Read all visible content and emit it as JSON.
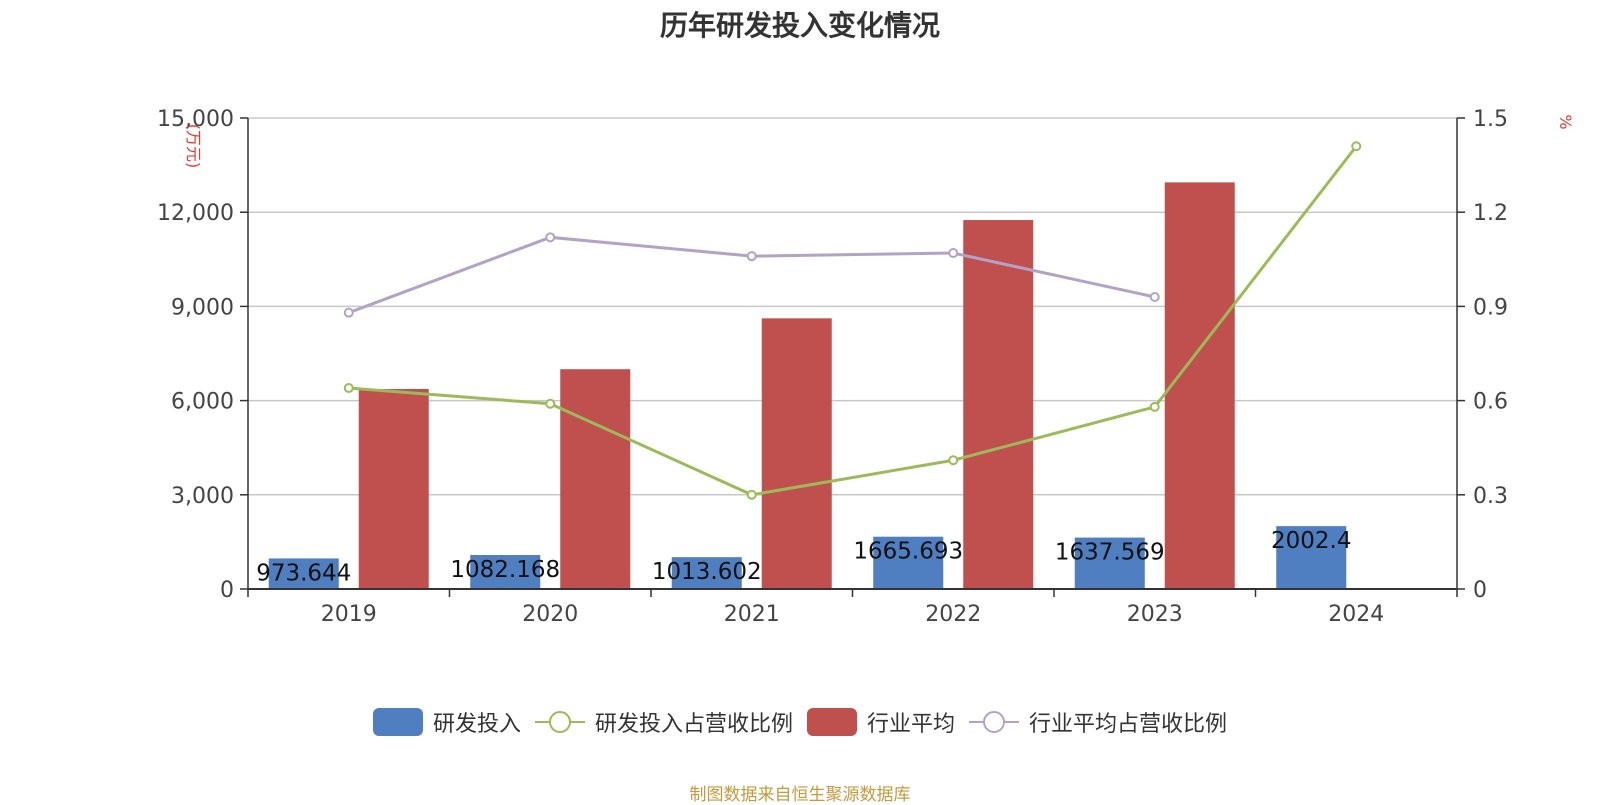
{
  "title": "历年研发投入变化情况",
  "source": "制图数据来自恒生聚源数据库",
  "y_left_unit": "(万元)",
  "y_right_unit": "%",
  "colors": {
    "rd_bar": "#4f7fc0",
    "industry_bar": "#c0504d",
    "rd_ratio_line": "#9bbb59",
    "industry_ratio_line": "#b3a2c7",
    "grid": "#c8c8c8",
    "axis": "#333333"
  },
  "legend": [
    {
      "label": "研发投入",
      "kind": "bar",
      "color": "#4f7fc0"
    },
    {
      "label": "研发投入占营收比例",
      "kind": "line",
      "color": "#9bbb59"
    },
    {
      "label": "行业平均",
      "kind": "bar",
      "color": "#c0504d"
    },
    {
      "label": "行业平均占营收比例",
      "kind": "line",
      "color": "#b3a2c7"
    }
  ],
  "chart_data": {
    "type": "bar",
    "title": "历年研发投入变化情况",
    "categories": [
      "2019",
      "2020",
      "2021",
      "2022",
      "2023",
      "2024"
    ],
    "y_left": {
      "label": "(万元)",
      "ylim": [
        0,
        15000
      ],
      "ticks": [
        0,
        3000,
        6000,
        9000,
        12000,
        15000
      ],
      "tick_labels": [
        "0",
        "3,000",
        "6,000",
        "9,000",
        "12,000",
        "15,000"
      ]
    },
    "y_right": {
      "label": "%",
      "ylim": [
        0,
        1.5
      ],
      "ticks": [
        0,
        0.3,
        0.6,
        0.9,
        1.2,
        1.5
      ],
      "tick_labels": [
        "0",
        "0.3",
        "0.6",
        "0.9",
        "1.2",
        "1.5"
      ]
    },
    "grid": true,
    "legend_position": "bottom",
    "series": [
      {
        "name": "研发投入",
        "type": "bar",
        "axis": "left",
        "values": [
          973.644,
          1082.168,
          1013.602,
          1665.693,
          1637.569,
          2002.4
        ],
        "labels": [
          "973.644",
          "1082.168",
          "1013.602",
          "1665.693",
          "1637.569",
          "2002.4"
        ]
      },
      {
        "name": "行业平均",
        "type": "bar",
        "axis": "left",
        "values": [
          6370,
          7000,
          8620,
          11750,
          12950,
          null
        ]
      },
      {
        "name": "研发投入占营收比例",
        "type": "line",
        "axis": "right",
        "values": [
          0.64,
          0.59,
          0.3,
          0.41,
          0.58,
          1.41
        ]
      },
      {
        "name": "行业平均占营收比例",
        "type": "line",
        "axis": "right",
        "values": [
          0.88,
          1.12,
          1.06,
          1.07,
          0.93,
          null
        ]
      }
    ]
  }
}
